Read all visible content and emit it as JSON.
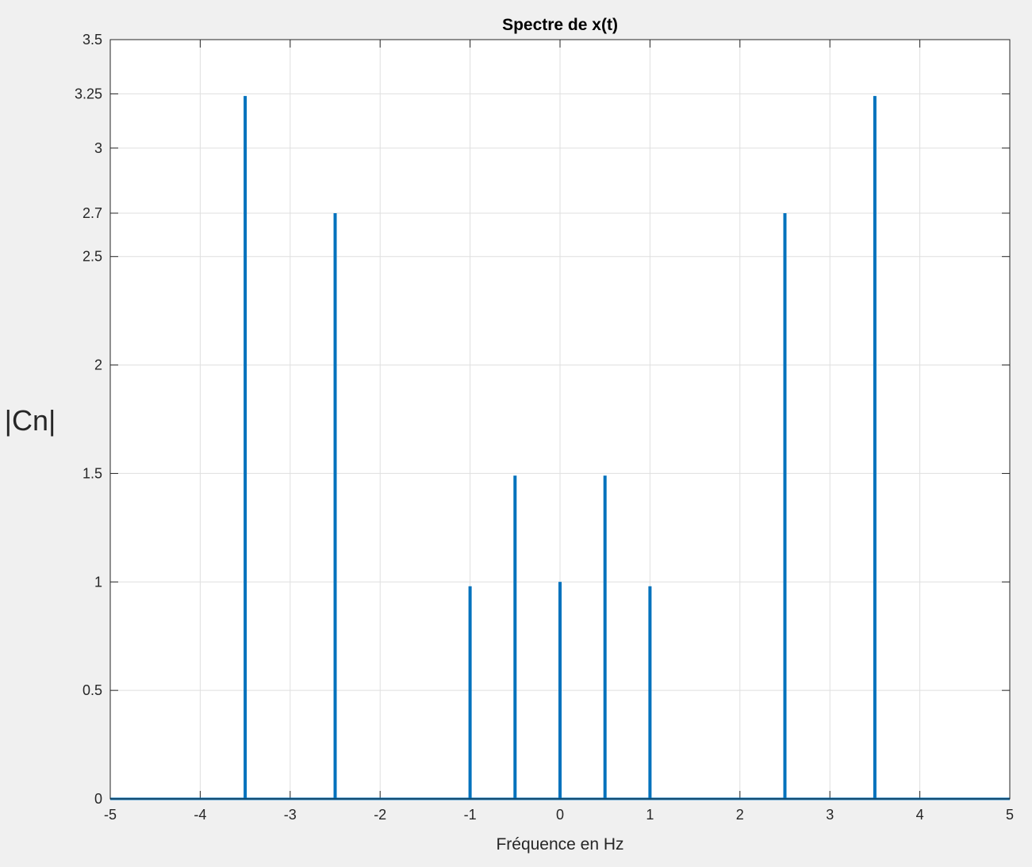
{
  "chart_data": {
    "type": "line",
    "title": "Spectre de x(t)",
    "xlabel": "Fréquence en Hz",
    "ylabel": "|Cn|",
    "xlim": [
      -5,
      5
    ],
    "ylim": [
      0,
      3.5
    ],
    "xticks": [
      -5,
      -4,
      -3,
      -2,
      -1,
      0,
      1,
      2,
      3,
      4,
      5
    ],
    "yticks": [
      0,
      0.5,
      1,
      1.5,
      2,
      2.5,
      2.7,
      3,
      3.25,
      3.5
    ],
    "grid": true,
    "line_color": "#0072BD",
    "peaks": [
      {
        "x": -3.5,
        "y": 3.24
      },
      {
        "x": -2.5,
        "y": 2.7
      },
      {
        "x": -1,
        "y": 0.98
      },
      {
        "x": -0.5,
        "y": 1.49
      },
      {
        "x": 0,
        "y": 1.0
      },
      {
        "x": 0.5,
        "y": 1.49
      },
      {
        "x": 1,
        "y": 0.98
      },
      {
        "x": 2.5,
        "y": 2.7
      },
      {
        "x": 3.5,
        "y": 3.24
      }
    ]
  }
}
